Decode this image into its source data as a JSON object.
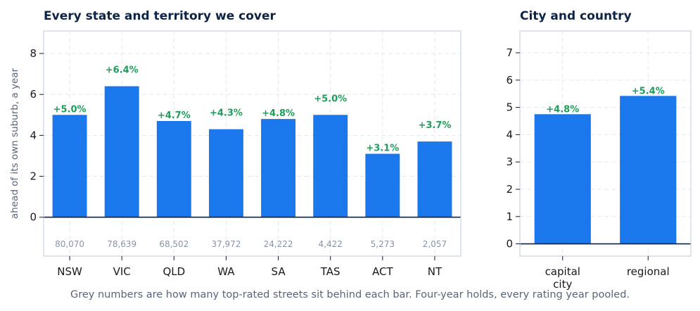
{
  "colors": {
    "bar": "#1a77ec",
    "label": "#1e9e5a",
    "count": "#8a93a6",
    "title": "#0d2447",
    "baseline": "#0d2447",
    "frame": "#c9d3df",
    "grid": "#e3e8ee"
  },
  "caption": "Grey numbers are how many top-rated streets sit behind each bar. Four-year holds, every rating year pooled.",
  "chart_data": [
    {
      "type": "bar",
      "title": "Every state and territory we cover",
      "ylabel": "ahead of its own suburb, a year",
      "xlabel": "",
      "categories": [
        "NSW",
        "VIC",
        "QLD",
        "WA",
        "SA",
        "TAS",
        "ACT",
        "NT"
      ],
      "values": [
        5.0,
        6.4,
        4.7,
        4.3,
        4.8,
        5.0,
        3.1,
        3.7
      ],
      "data_labels": [
        "+5.0%",
        "+6.4%",
        "+4.7%",
        "+4.3%",
        "+4.8%",
        "+5.0%",
        "+3.1%",
        "+3.7%"
      ],
      "counts": [
        "80,070",
        "78,639",
        "68,502",
        "37,972",
        "24,222",
        "4,422",
        "5,273",
        "2,057"
      ],
      "ylim": [
        -1.9,
        9.1
      ],
      "yticks": [
        0,
        2,
        4,
        6,
        8
      ],
      "grid": true
    },
    {
      "type": "bar",
      "title": "City and country",
      "xlabel": "",
      "ylabel": "",
      "categories": [
        [
          "capital",
          "city"
        ],
        [
          "regional"
        ]
      ],
      "values": [
        4.75,
        5.42
      ],
      "data_labels": [
        "+4.8%",
        "+5.4%"
      ],
      "ylim": [
        -0.45,
        7.8
      ],
      "yticks": [
        0,
        1,
        2,
        3,
        4,
        5,
        6,
        7
      ],
      "grid": true
    }
  ]
}
